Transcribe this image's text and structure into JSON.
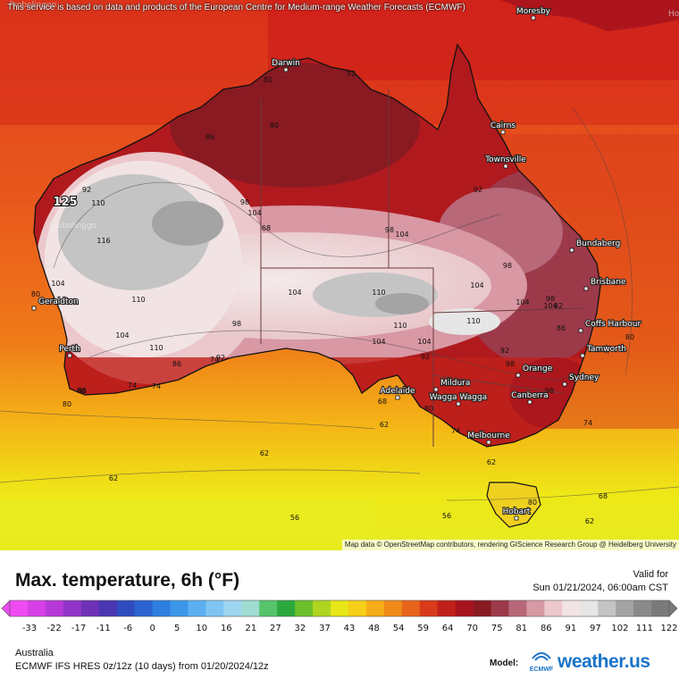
{
  "notice": "This service is based on data and products of the European Centre for Medium-range Weather Forecasts (ECMWF)",
  "attribution": "Map data © OpenStreetMap contributors, rendering GIScience Research Group @ Heidelberg University",
  "title": "Max. temperature, 6h (°F)",
  "valid_label": "Valid for",
  "valid_time": "Sun 01/21/2024, 06:00am CST",
  "region": "Australia",
  "model_info": "ECMWF IFS HRES 0z/12z (10 days) from 01/20/2024/12z",
  "model_label": "Model:",
  "ecmwf_text": "ECMWF",
  "brand_name": "weather.us",
  "edge_labels": {
    "top_left": "Probolinggo",
    "top_right": "Ho",
    "left_mid": "Probolinggo"
  },
  "cities": [
    {
      "name": "Darwin"
    },
    {
      "name": "Cairns"
    },
    {
      "name": "Townsville"
    },
    {
      "name": "Bundaberg"
    },
    {
      "name": "Brisbane"
    },
    {
      "name": "Coffs Harbour"
    },
    {
      "name": "Tamworth"
    },
    {
      "name": "Sydney"
    },
    {
      "name": "Orange"
    },
    {
      "name": "Canberra"
    },
    {
      "name": "Wagga Wagga"
    },
    {
      "name": "Mildura"
    },
    {
      "name": "Adelaide"
    },
    {
      "name": "Melbourne"
    },
    {
      "name": "Hobart"
    },
    {
      "name": "Geraldton"
    },
    {
      "name": "Perth"
    },
    {
      "name": "Moresby"
    }
  ],
  "contour_labels": [
    "80",
    "92",
    "86",
    "80",
    "92",
    "98",
    "104",
    "110",
    "116",
    "104",
    "110",
    "104",
    "110",
    "125",
    "104",
    "98",
    "104",
    "110",
    "104",
    "110",
    "104",
    "98",
    "92",
    "98",
    "104",
    "110",
    "104",
    "98",
    "92",
    "80",
    "68",
    "74",
    "80",
    "92",
    "86",
    "62",
    "62",
    "62",
    "56",
    "56",
    "62",
    "68",
    "62",
    "74",
    "74",
    "74",
    "80",
    "86",
    "92",
    "98",
    "104",
    "98",
    "92",
    "80",
    "86",
    "80",
    "74",
    "80",
    "68"
  ],
  "scale": {
    "ticks": [
      "-33",
      "-22",
      "-17",
      "-11",
      "-6",
      "0",
      "5",
      "10",
      "16",
      "21",
      "27",
      "32",
      "37",
      "43",
      "48",
      "54",
      "59",
      "64",
      "70",
      "75",
      "81",
      "86",
      "91",
      "97",
      "102",
      "111",
      "122"
    ],
    "colors": [
      "#f04bf2",
      "#d640e6",
      "#b738d8",
      "#9235c8",
      "#6f31b8",
      "#4a36b0",
      "#2f4cbf",
      "#2b64d1",
      "#2d7fe0",
      "#3c97ea",
      "#5bb0f1",
      "#7fc5f3",
      "#9dd6f0",
      "#9fdcd2",
      "#55c46a",
      "#2aa83c",
      "#6cc02c",
      "#aed420",
      "#e7e617",
      "#f6cf18",
      "#f5ac16",
      "#f08a18",
      "#e8641c",
      "#d83a1a",
      "#c0201a",
      "#a8141e",
      "#8a1a22",
      "#9c3a4a",
      "#b86878",
      "#d898a4",
      "#ecc8cc",
      "#f2e4e4",
      "#e6e6e6",
      "#c4c4c4",
      "#a4a4a4",
      "#8a8a8a",
      "#7a7a7a"
    ]
  }
}
